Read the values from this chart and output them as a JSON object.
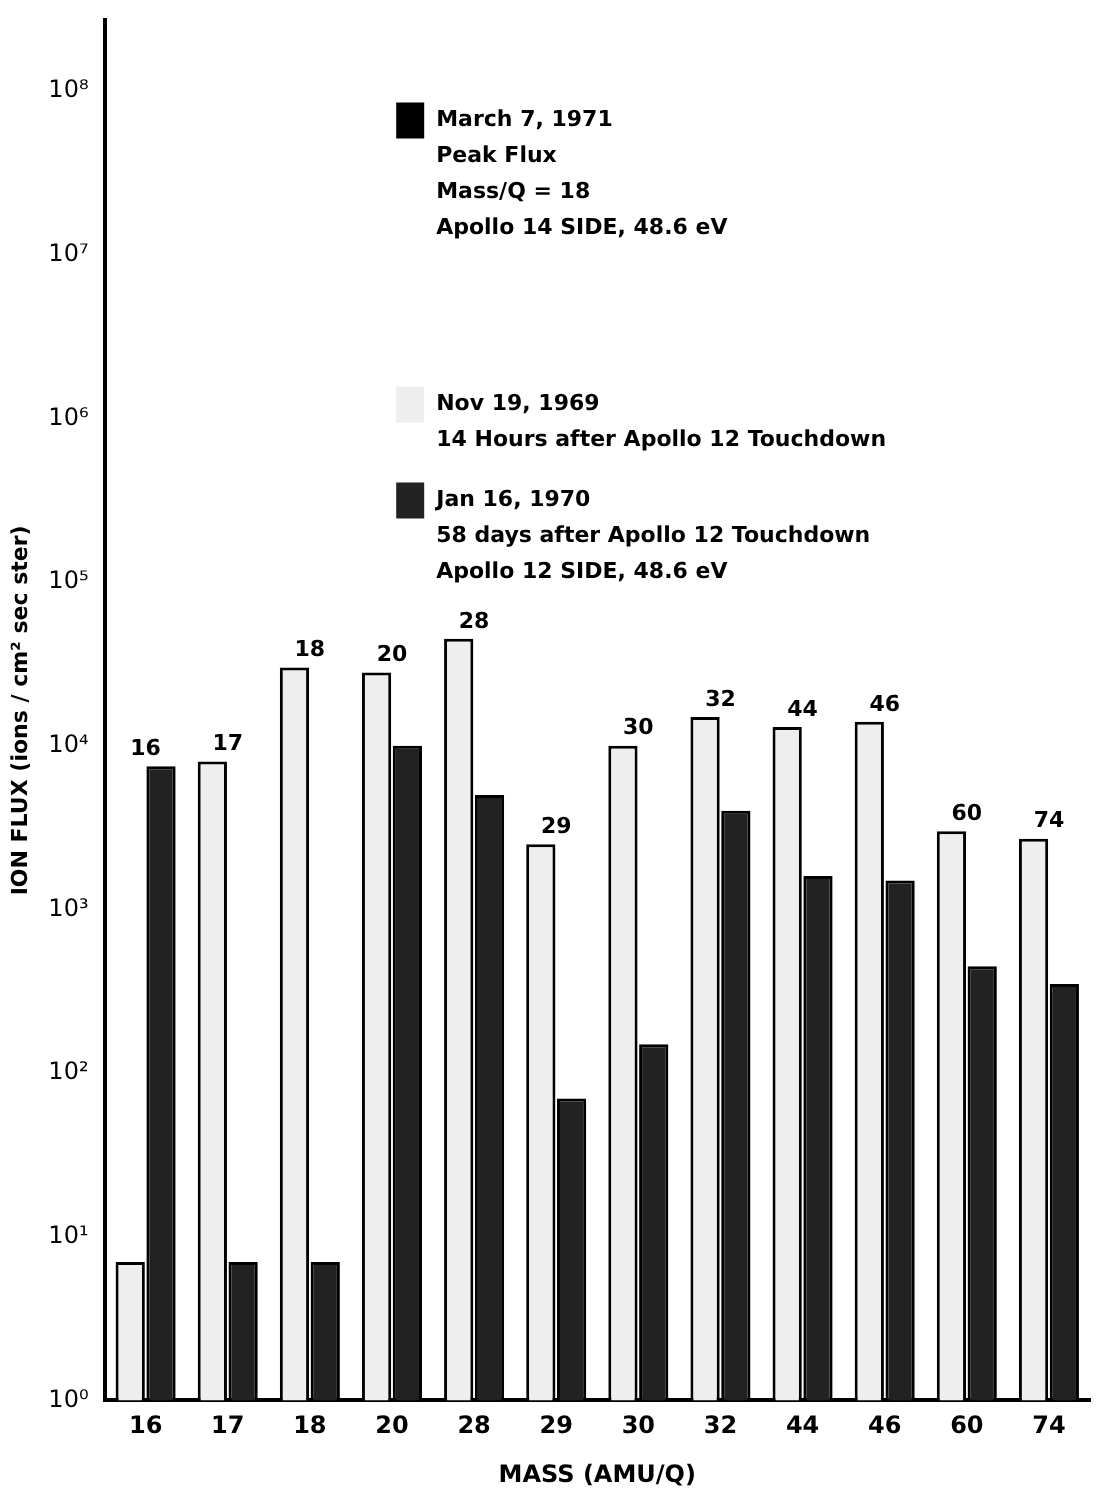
{
  "chart_data": {
    "type": "bar",
    "xlabel": "MASS (AMU/Q)",
    "ylabel": "ION FLUX (ions / cm² sec ster)",
    "categories": [
      "16",
      "17",
      "18",
      "20",
      "28",
      "29",
      "30",
      "32",
      "44",
      "46",
      "60",
      "74"
    ],
    "series": [
      {
        "name": "March 7, 1971\nPeak Flux\nMass/Q = 18\nApollo 14 SIDE, 48.6 eV",
        "color": "#000000",
        "values": [
          null,
          null,
          null,
          null,
          null,
          null,
          null,
          null,
          null,
          null,
          null,
          null
        ]
      },
      {
        "name": "Nov 19, 1969\n14 Hours after Apollo 12 Touchdown",
        "color": "#eeeeee",
        "values": [
          7,
          8000,
          30000,
          28000,
          45000,
          2500,
          10000,
          15000,
          13000,
          14000,
          3000,
          2700
        ]
      },
      {
        "name": "Jan 16, 1970\n58 days after Apollo 12 Touchdown\nApollo 12 SIDE, 48.6 eV",
        "color": "#222222",
        "values": [
          7500,
          7,
          7,
          10000,
          5000,
          70,
          150,
          4000,
          1600,
          1500,
          450,
          350
        ]
      }
    ],
    "log": "y",
    "ylim": [
      1,
      270000000
    ],
    "yticks": [
      {
        "value": 1,
        "label": "10⁰"
      },
      {
        "value": 10,
        "label": "10¹"
      },
      {
        "value": 100,
        "label": "10²"
      },
      {
        "value": 1000,
        "label": "10³"
      },
      {
        "value": 10000,
        "label": "10⁴"
      },
      {
        "value": 100000,
        "label": "10⁵"
      },
      {
        "value": 1000000,
        "label": "10⁶"
      },
      {
        "value": 10000000,
        "label": "10⁷"
      },
      {
        "value": 100000000,
        "label": "10⁸"
      }
    ],
    "grid": false,
    "legend": "top",
    "annotations": [
      {
        "text": "16",
        "x": "16",
        "y": 7500
      },
      {
        "text": "17",
        "x": "17",
        "y": 8000
      },
      {
        "text": "18",
        "x": "18",
        "y": 30000
      },
      {
        "text": "20",
        "x": "20",
        "y": 28000
      },
      {
        "text": "28",
        "x": "28",
        "y": 45000
      },
      {
        "text": "29",
        "x": "29",
        "y": 2500
      },
      {
        "text": "30",
        "x": "30",
        "y": 10000
      },
      {
        "text": "32",
        "x": "32",
        "y": 15000
      },
      {
        "text": "44",
        "x": "44",
        "y": 13000
      },
      {
        "text": "46",
        "x": "46",
        "y": 14000
      },
      {
        "text": "60",
        "x": "60",
        "y": 3000
      },
      {
        "text": "74",
        "x": "74",
        "y": 2700
      }
    ]
  }
}
